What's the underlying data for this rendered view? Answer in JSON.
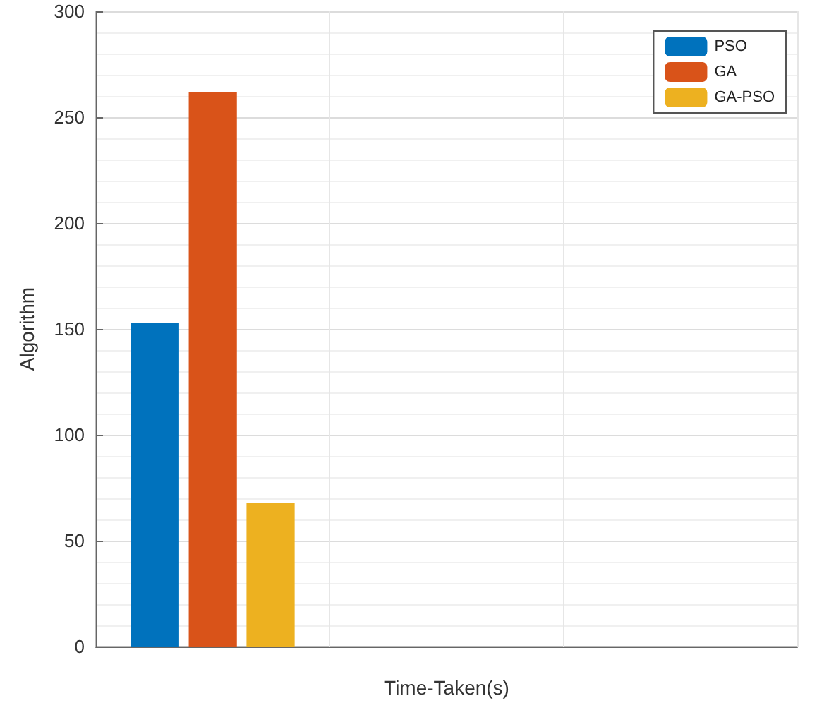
{
  "chart_data": {
    "type": "bar",
    "xlabel": "Time-Taken(s)",
    "ylabel": "Algorithm",
    "categories": [
      null,
      null,
      null
    ],
    "series": [
      {
        "name": "PSO",
        "color": "#0072bd",
        "values": [
          153,
          null,
          null
        ]
      },
      {
        "name": "GA",
        "color": "#d95319",
        "values": [
          262,
          null,
          null
        ]
      },
      {
        "name": "GA-PSO",
        "color": "#edb120",
        "values": [
          68,
          null,
          null
        ]
      }
    ],
    "ylim": [
      0,
      300
    ],
    "yticks": [
      0,
      50,
      100,
      150,
      200,
      250,
      300
    ],
    "grid": true,
    "legend": "top right"
  }
}
